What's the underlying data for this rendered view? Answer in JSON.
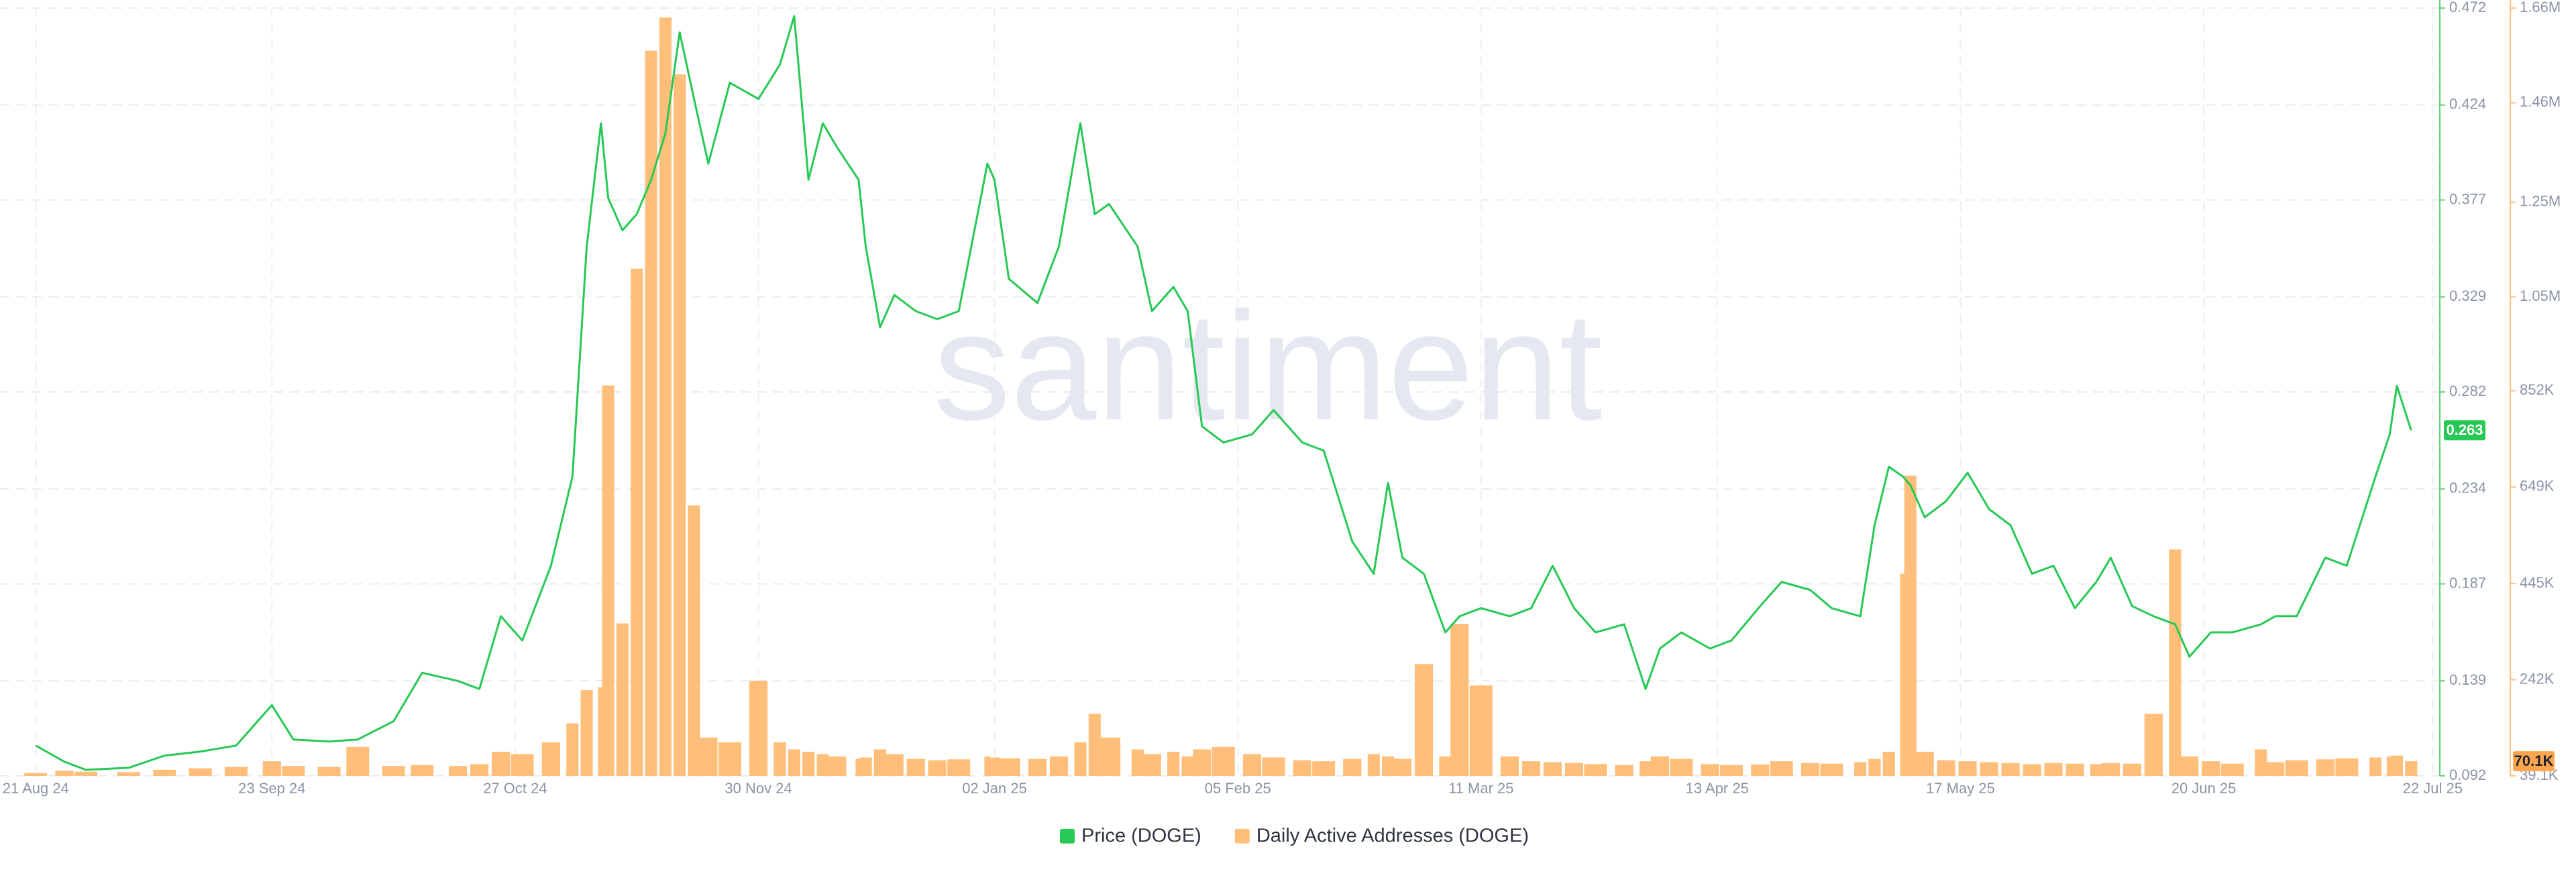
{
  "chart_data": {
    "type": "line",
    "watermark": "santiment",
    "x": [
      "2024-08-21",
      "2024-08-25",
      "2024-08-28",
      "2024-09-03",
      "2024-09-08",
      "2024-09-13",
      "2024-09-18",
      "2024-09-23",
      "2024-09-26",
      "2024-10-01",
      "2024-10-05",
      "2024-10-10",
      "2024-10-14",
      "2024-10-19",
      "2024-10-22",
      "2024-10-25",
      "2024-10-28",
      "2024-11-01",
      "2024-11-04",
      "2024-11-06",
      "2024-11-08",
      "2024-11-09",
      "2024-11-11",
      "2024-11-13",
      "2024-11-15",
      "2024-11-17",
      "2024-11-19",
      "2024-11-21",
      "2024-11-23",
      "2024-11-26",
      "2024-11-30",
      "2024-12-03",
      "2024-12-05",
      "2024-12-07",
      "2024-12-09",
      "2024-12-11",
      "2024-12-14",
      "2024-12-15",
      "2024-12-17",
      "2024-12-19",
      "2024-12-22",
      "2024-12-25",
      "2024-12-28",
      "2025-01-01",
      "2025-01-02",
      "2025-01-04",
      "2025-01-08",
      "2025-01-11",
      "2025-01-14",
      "2025-01-16",
      "2025-01-18",
      "2025-01-22",
      "2025-01-24",
      "2025-01-27",
      "2025-01-29",
      "2025-01-31",
      "2025-02-03",
      "2025-02-07",
      "2025-02-10",
      "2025-02-14",
      "2025-02-17",
      "2025-02-21",
      "2025-02-24",
      "2025-02-26",
      "2025-02-28",
      "2025-03-03",
      "2025-03-06",
      "2025-03-08",
      "2025-03-11",
      "2025-03-15",
      "2025-03-18",
      "2025-03-21",
      "2025-03-24",
      "2025-03-27",
      "2025-03-31",
      "2025-04-03",
      "2025-04-05",
      "2025-04-08",
      "2025-04-12",
      "2025-04-15",
      "2025-04-19",
      "2025-04-22",
      "2025-04-26",
      "2025-04-29",
      "2025-05-03",
      "2025-05-05",
      "2025-05-07",
      "2025-05-09",
      "2025-05-10",
      "2025-05-12",
      "2025-05-15",
      "2025-05-18",
      "2025-05-21",
      "2025-05-24",
      "2025-05-27",
      "2025-05-30",
      "2025-06-02",
      "2025-06-05",
      "2025-06-07",
      "2025-06-10",
      "2025-06-13",
      "2025-06-16",
      "2025-06-18",
      "2025-06-21",
      "2025-06-24",
      "2025-06-28",
      "2025-06-30",
      "2025-07-03",
      "2025-07-07",
      "2025-07-10",
      "2025-07-14",
      "2025-07-16",
      "2025-07-17",
      "2025-07-19"
    ],
    "xlim": [
      "2024-08-16",
      "2025-07-23"
    ],
    "xticks": [
      {
        "value": "2024-08-21",
        "label": "21 Aug 24"
      },
      {
        "value": "2024-09-23",
        "label": "23 Sep 24"
      },
      {
        "value": "2024-10-27",
        "label": "27 Oct 24"
      },
      {
        "value": "2024-11-30",
        "label": "30 Nov 24"
      },
      {
        "value": "2025-01-02",
        "label": "02 Jan 25"
      },
      {
        "value": "2025-02-05",
        "label": "05 Feb 25"
      },
      {
        "value": "2025-03-11",
        "label": "11 Mar 25"
      },
      {
        "value": "2025-04-13",
        "label": "13 Apr 25"
      },
      {
        "value": "2025-05-17",
        "label": "17 May 25"
      },
      {
        "value": "2025-06-20",
        "label": "20 Jun 25"
      },
      {
        "value": "2025-07-22",
        "label": "22 Jul 25"
      }
    ],
    "ylim": [
      0.092,
      0.472
    ],
    "yticks": [
      0.092,
      0.139,
      0.187,
      0.234,
      0.282,
      0.329,
      0.377,
      0.424,
      0.472
    ],
    "y2lim": [
      39100,
      1660000
    ],
    "y2ticks": [
      {
        "value": 39100,
        "label": "39.1K"
      },
      {
        "value": 242000,
        "label": "242K"
      },
      {
        "value": 445000,
        "label": "445K"
      },
      {
        "value": 649000,
        "label": "649K"
      },
      {
        "value": 852000,
        "label": "852K"
      },
      {
        "value": 1050000,
        "label": "1.05M"
      },
      {
        "value": 1250000,
        "label": "1.25M"
      },
      {
        "value": 1460000,
        "label": "1.46M"
      },
      {
        "value": 1660000,
        "label": "1.66M"
      }
    ],
    "grid": true,
    "series": [
      {
        "name": "Price (DOGE)",
        "type": "line",
        "axis": "y",
        "color": "#26c953",
        "last": 0.263,
        "values": [
          0.107,
          0.099,
          0.095,
          0.096,
          0.102,
          0.104,
          0.107,
          0.127,
          0.11,
          0.109,
          0.11,
          0.119,
          0.143,
          0.139,
          0.135,
          0.171,
          0.159,
          0.196,
          0.24,
          0.354,
          0.415,
          0.378,
          0.362,
          0.37,
          0.387,
          0.41,
          0.46,
          0.427,
          0.395,
          0.435,
          0.427,
          0.444,
          0.468,
          0.387,
          0.415,
          0.403,
          0.387,
          0.354,
          0.314,
          0.33,
          0.322,
          0.318,
          0.322,
          0.395,
          0.387,
          0.338,
          0.326,
          0.354,
          0.415,
          0.37,
          0.375,
          0.354,
          0.322,
          0.334,
          0.322,
          0.265,
          0.257,
          0.261,
          0.273,
          0.257,
          0.253,
          0.208,
          0.192,
          0.237,
          0.2,
          0.192,
          0.163,
          0.171,
          0.175,
          0.171,
          0.175,
          0.196,
          0.175,
          0.163,
          0.167,
          0.135,
          0.155,
          0.163,
          0.155,
          0.159,
          0.176,
          0.188,
          0.184,
          0.175,
          0.171,
          0.216,
          0.245,
          0.24,
          0.236,
          0.22,
          0.228,
          0.242,
          0.224,
          0.216,
          0.192,
          0.196,
          0.175,
          0.188,
          0.2,
          0.176,
          0.171,
          0.167,
          0.151,
          0.163,
          0.163,
          0.167,
          0.171,
          0.171,
          0.2,
          0.196,
          0.24,
          0.261,
          0.285,
          0.263
        ]
      },
      {
        "name": "Daily Active Addresses (DOGE)",
        "type": "bar",
        "axis": "y2",
        "color": "#ffbf7a",
        "last": {
          "value": 70100,
          "label": "70.1K"
        },
        "values": [
          45000,
          50000,
          48000,
          47000,
          52000,
          55000,
          58000,
          70000,
          60000,
          58000,
          100000,
          60000,
          62000,
          60000,
          64000,
          90000,
          85000,
          110000,
          150000,
          220000,
          226000,
          863000,
          361000,
          1110000,
          1570000,
          1640000,
          1520000,
          610000,
          120000,
          110000,
          240000,
          110000,
          95000,
          90000,
          85000,
          80000,
          75000,
          78000,
          95000,
          85000,
          75000,
          72000,
          74000,
          80000,
          78000,
          76000,
          75000,
          80000,
          110000,
          170000,
          120000,
          95000,
          85000,
          90000,
          80000,
          95000,
          100000,
          85000,
          78000,
          72000,
          70000,
          75000,
          85000,
          80000,
          75000,
          275000,
          80000,
          360000,
          230000,
          80000,
          70000,
          68000,
          66000,
          64000,
          62000,
          70000,
          80000,
          75000,
          64000,
          62000,
          63000,
          70000,
          66000,
          65000,
          68000,
          75000,
          90000,
          466000,
          673000,
          90000,
          72000,
          70000,
          68000,
          66000,
          64000,
          66000,
          65000,
          64000,
          66000,
          65000,
          170000,
          517000,
          80000,
          70000,
          65000,
          95000,
          68000,
          72000,
          74000,
          76000,
          78000,
          80000,
          82000,
          70100
        ]
      }
    ]
  }
}
